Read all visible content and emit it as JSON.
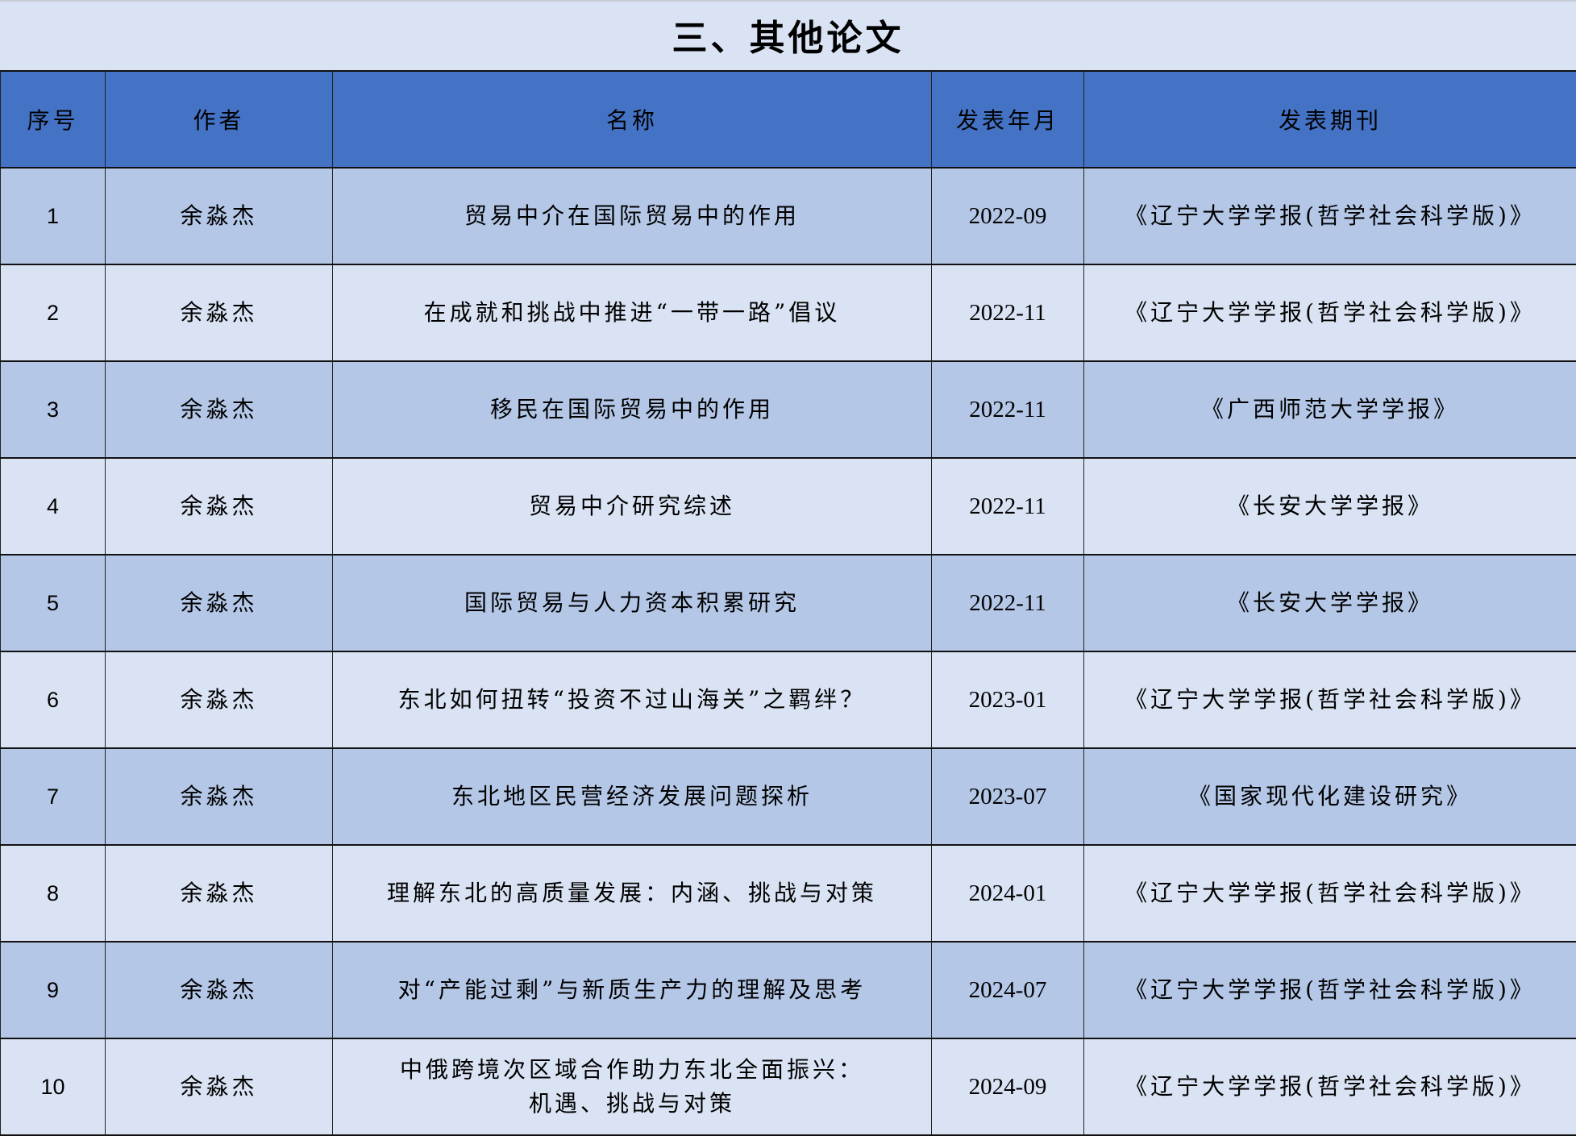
{
  "title": "三、其他论文",
  "colors": {
    "header_bg": "#4472c4",
    "row_odd": "#b4c7e7",
    "row_even": "#dae3f3"
  },
  "columns": [
    "序号",
    "作者",
    "名称",
    "发表年月",
    "发表期刊"
  ],
  "rows": [
    {
      "no": "1",
      "author": "余淼杰",
      "name": "贸易中介在国际贸易中的作用",
      "name2": "",
      "date": "2022-09",
      "journal": "《辽宁大学学报(哲学社会科学版)》"
    },
    {
      "no": "2",
      "author": "余淼杰",
      "name": "在成就和挑战中推进“一带一路”倡议",
      "name2": "",
      "date": "2022-11",
      "journal": "《辽宁大学学报(哲学社会科学版)》"
    },
    {
      "no": "3",
      "author": "余淼杰",
      "name": "移民在国际贸易中的作用",
      "name2": "",
      "date": "2022-11",
      "journal": "《广西师范大学学报》"
    },
    {
      "no": "4",
      "author": "余淼杰",
      "name": "贸易中介研究综述",
      "name2": "",
      "date": "2022-11",
      "journal": "《长安大学学报》"
    },
    {
      "no": "5",
      "author": "余淼杰",
      "name": "国际贸易与人力资本积累研究",
      "name2": "",
      "date": "2022-11",
      "journal": "《长安大学学报》"
    },
    {
      "no": "6",
      "author": "余淼杰",
      "name": "东北如何扭转“投资不过山海关”之羁绊？",
      "name2": "",
      "date": "2023-01",
      "journal": "《辽宁大学学报(哲学社会科学版)》"
    },
    {
      "no": "7",
      "author": "余淼杰",
      "name": "东北地区民营经济发展问题探析",
      "name2": "",
      "date": "2023-07",
      "journal": "《国家现代化建设研究》"
    },
    {
      "no": "8",
      "author": "余淼杰",
      "name": "理解东北的高质量发展：内涵、挑战与对策",
      "name2": "",
      "date": "2024-01",
      "journal": "《辽宁大学学报(哲学社会科学版)》"
    },
    {
      "no": "9",
      "author": "余淼杰",
      "name": "对“产能过剩”与新质生产力的理解及思考",
      "name2": "",
      "date": "2024-07",
      "journal": "《辽宁大学学报(哲学社会科学版)》"
    },
    {
      "no": "10",
      "author": "余淼杰",
      "name": "中俄跨境次区域合作助力东北全面振兴：",
      "name2": "机遇、挑战与对策",
      "date": "2024-09",
      "journal": "《辽宁大学学报(哲学社会科学版)》"
    }
  ]
}
